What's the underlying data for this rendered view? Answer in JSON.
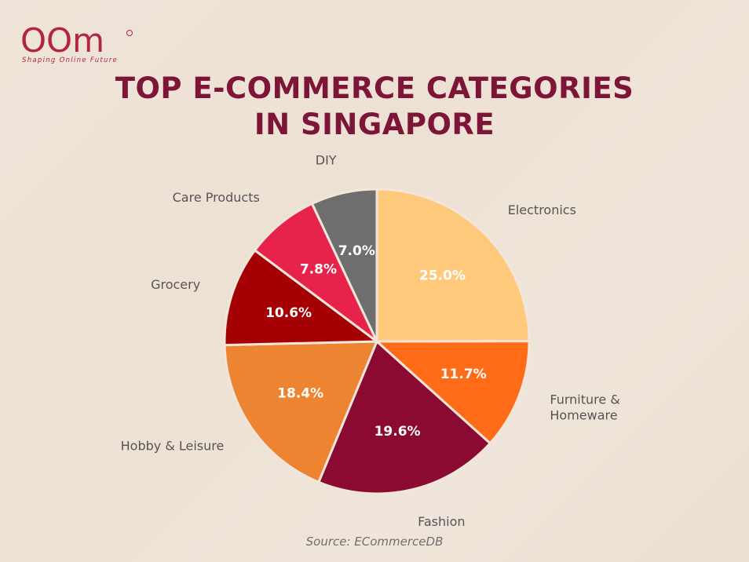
{
  "brand": {
    "logo_text": "OOm",
    "tagline": "Shaping Online Future",
    "color": "#b3243f"
  },
  "chart_data": {
    "type": "pie",
    "title_lines": [
      "TOP E-COMMERCE CATEGORIES",
      "IN SINGAPORE"
    ],
    "slices": [
      {
        "label": "Electronics",
        "value": 25.0,
        "display": "25.0%",
        "color": "#fec97a"
      },
      {
        "label": "Furniture & Homeware",
        "label_lines": [
          "Furniture &",
          "Homeware"
        ],
        "value": 11.7,
        "display": "11.7%",
        "color": "#ff6b16"
      },
      {
        "label": "Fashion",
        "value": 19.6,
        "display": "19.6%",
        "color": "#8b0a32"
      },
      {
        "label": "Hobby & Leisure",
        "value": 18.4,
        "display": "18.4%",
        "color": "#ed8432"
      },
      {
        "label": "Grocery",
        "value": 10.6,
        "display": "10.6%",
        "color": "#a50004"
      },
      {
        "label": "Care Products",
        "value": 7.8,
        "display": "7.8%",
        "color": "#e7224b"
      },
      {
        "label": "DIY",
        "value": 7.0,
        "display": "7.0%",
        "color": "#6e6e6e"
      }
    ],
    "start": "top, clockwise"
  },
  "source": "Source: ECommerceDB",
  "colors": {
    "title": "#7d1538",
    "background": "#efe4d9",
    "label": "#555555"
  }
}
